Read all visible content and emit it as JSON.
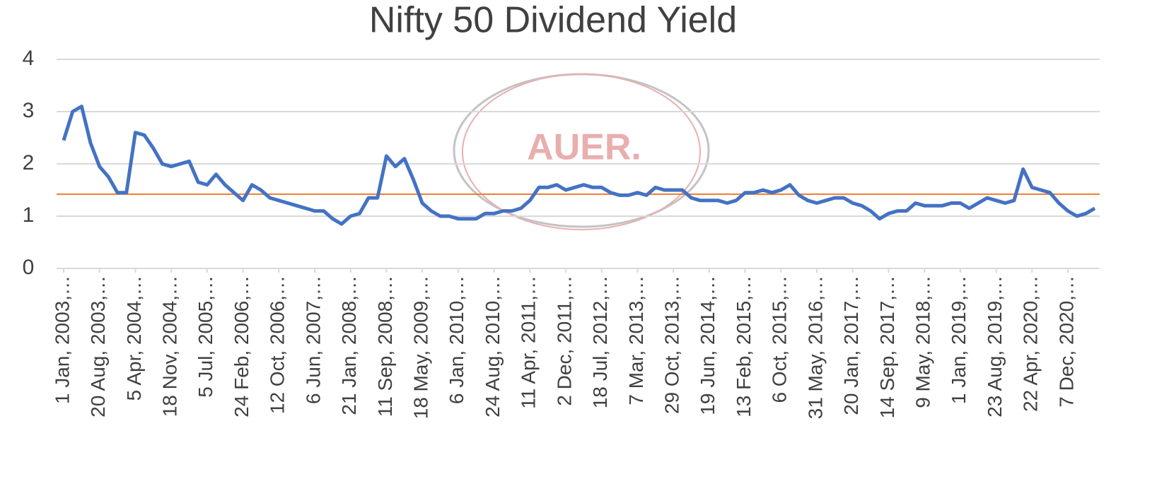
{
  "chart_data": {
    "type": "line",
    "title": "Nifty 50 Dividend Yield",
    "watermark": "AUER.",
    "categories": [
      "1 Jan, 2003,…",
      null,
      null,
      null,
      "20 Aug, 2003,…",
      null,
      null,
      null,
      "5 Apr, 2004,…",
      null,
      null,
      null,
      "18 Nov, 2004,…",
      null,
      null,
      null,
      "5 Jul, 2005,…",
      null,
      null,
      null,
      "24 Feb, 2006,…",
      null,
      null,
      null,
      "12 Oct, 2006,…",
      null,
      null,
      null,
      "6 Jun, 2007,…",
      null,
      null,
      null,
      "21 Jan, 2008,…",
      null,
      null,
      null,
      "11 Sep, 2008,…",
      null,
      null,
      null,
      "18 May, 2009,…",
      null,
      null,
      null,
      "6 Jan, 2010,…",
      null,
      null,
      null,
      "24 Aug, 2010,…",
      null,
      null,
      null,
      "11 Apr, 2011,…",
      null,
      null,
      null,
      "2 Dec, 2011,…",
      null,
      null,
      null,
      "18 Jul, 2012,…",
      null,
      null,
      null,
      "7 Mar, 2013,…",
      null,
      null,
      null,
      "29 Oct, 2013,…",
      null,
      null,
      null,
      "19 Jun, 2014,…",
      null,
      null,
      null,
      "13 Feb, 2015,…",
      null,
      null,
      null,
      "6 Oct, 2015,…",
      null,
      null,
      null,
      "31 May, 2016,…",
      null,
      null,
      null,
      "20 Jan, 2017,…",
      null,
      null,
      null,
      "14 Sep, 2017,…",
      null,
      null,
      null,
      "9 May, 2018,…",
      null,
      null,
      null,
      "1 Jan, 2019,…",
      null,
      null,
      null,
      "23 Aug, 2019,…",
      null,
      null,
      null,
      "22 Apr, 2020,…",
      null,
      null,
      null,
      "7 Dec, 2020,…",
      null,
      null,
      null
    ],
    "series": [
      {
        "color": "#4472c4",
        "values": [
          2.45,
          3.0,
          3.1,
          2.4,
          1.95,
          1.75,
          1.45,
          1.45,
          2.6,
          2.55,
          2.3,
          2.0,
          1.95,
          2.0,
          2.05,
          1.65,
          1.6,
          1.8,
          1.6,
          1.45,
          1.3,
          1.6,
          1.5,
          1.35,
          1.3,
          1.25,
          1.2,
          1.15,
          1.1,
          1.1,
          0.95,
          0.85,
          1.0,
          1.05,
          1.35,
          1.35,
          2.15,
          1.95,
          2.1,
          1.7,
          1.25,
          1.1,
          1.0,
          1.0,
          0.95,
          0.95,
          0.95,
          1.05,
          1.05,
          1.1,
          1.1,
          1.15,
          1.3,
          1.55,
          1.55,
          1.6,
          1.5,
          1.55,
          1.6,
          1.55,
          1.55,
          1.45,
          1.4,
          1.4,
          1.45,
          1.4,
          1.55,
          1.5,
          1.5,
          1.5,
          1.35,
          1.3,
          1.3,
          1.3,
          1.25,
          1.3,
          1.45,
          1.45,
          1.5,
          1.45,
          1.5,
          1.6,
          1.4,
          1.3,
          1.25,
          1.3,
          1.35,
          1.35,
          1.25,
          1.2,
          1.1,
          0.95,
          1.05,
          1.1,
          1.1,
          1.25,
          1.2,
          1.2,
          1.2,
          1.25,
          1.25,
          1.15,
          1.25,
          1.35,
          1.3,
          1.25,
          1.3,
          1.9,
          1.55,
          1.5,
          1.45,
          1.25,
          1.1,
          1.0,
          1.05,
          1.15
        ]
      }
    ],
    "reference_line": {
      "value": 1.42,
      "color": "#ed7d31"
    },
    "ylim": [
      0,
      4
    ],
    "yticks": [
      0,
      1,
      2,
      3,
      4
    ],
    "grid": true
  }
}
